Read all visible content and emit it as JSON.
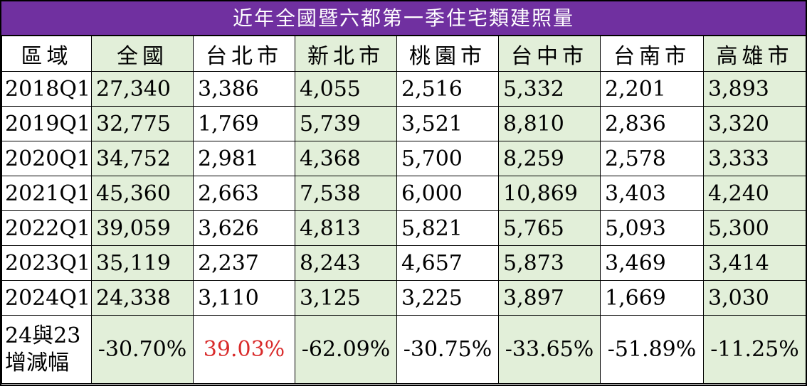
{
  "title": "近年全國暨六都第一季住宅類建照量",
  "colors": {
    "title_bg": "#7030a0",
    "title_text": "#ffffff",
    "green_cell": "#e2efd9",
    "positive_change": "#d92b2b"
  },
  "headers": [
    "區域",
    "全國",
    "台北市",
    "新北市",
    "桃園市",
    "台中市",
    "台南市",
    "高雄市"
  ],
  "rows": [
    {
      "label": "2018Q1",
      "values": [
        "27,340",
        "3,386",
        "4,055",
        "2,516",
        "5,332",
        "2,201",
        "3,893"
      ]
    },
    {
      "label": "2019Q1",
      "values": [
        "32,775",
        "1,769",
        "5,739",
        "3,521",
        "8,810",
        "2,836",
        "3,320"
      ]
    },
    {
      "label": "2020Q1",
      "values": [
        "34,752",
        "2,981",
        "4,368",
        "5,700",
        "8,259",
        "2,578",
        "3,333"
      ]
    },
    {
      "label": "2021Q1",
      "values": [
        "45,360",
        "2,663",
        "7,538",
        "6,000",
        "10,869",
        "3,403",
        "4,240"
      ]
    },
    {
      "label": "2022Q1",
      "values": [
        "39,059",
        "3,626",
        "4,813",
        "5,821",
        "5,765",
        "5,093",
        "5,300"
      ]
    },
    {
      "label": "2023Q1",
      "values": [
        "35,119",
        "2,237",
        "8,243",
        "4,657",
        "5,873",
        "3,469",
        "3,414"
      ]
    },
    {
      "label": "2024Q1",
      "values": [
        "24,338",
        "3,110",
        "3,125",
        "3,225",
        "3,897",
        "1,669",
        "3,030"
      ]
    }
  ],
  "change_row": {
    "label_line1": "24與23",
    "label_line2": "增減幅",
    "values": [
      "-30.70%",
      "39.03%",
      "-62.09%",
      "-30.75%",
      "-33.65%",
      "-51.89%",
      "-11.25%"
    ]
  }
}
